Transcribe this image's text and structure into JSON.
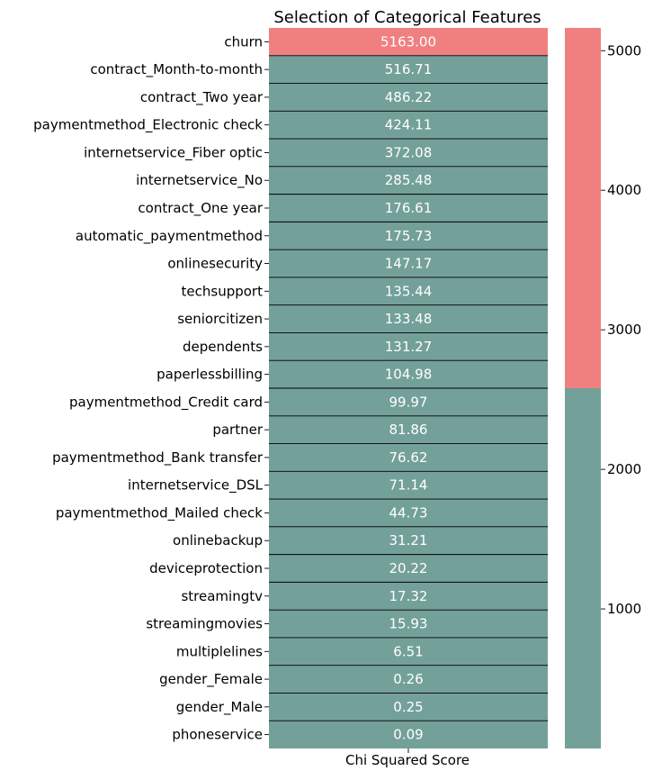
{
  "chart_data": {
    "type": "heatmap",
    "title": "Selection of Categorical Features",
    "xlabel": "Chi Squared Score",
    "columns": [
      "Chi Squared Score"
    ],
    "rows": [
      {
        "label": "churn",
        "value": 5163.0,
        "text": "5163.00"
      },
      {
        "label": "contract_Month-to-month",
        "value": 516.71,
        "text": "516.71"
      },
      {
        "label": "contract_Two year",
        "value": 486.22,
        "text": "486.22"
      },
      {
        "label": "paymentmethod_Electronic check",
        "value": 424.11,
        "text": "424.11"
      },
      {
        "label": "internetservice_Fiber optic",
        "value": 372.08,
        "text": "372.08"
      },
      {
        "label": "internetservice_No",
        "value": 285.48,
        "text": "285.48"
      },
      {
        "label": "contract_One year",
        "value": 176.61,
        "text": "176.61"
      },
      {
        "label": "automatic_paymentmethod",
        "value": 175.73,
        "text": "175.73"
      },
      {
        "label": "onlinesecurity",
        "value": 147.17,
        "text": "147.17"
      },
      {
        "label": "techsupport",
        "value": 135.44,
        "text": "135.44"
      },
      {
        "label": "seniorcitizen",
        "value": 133.48,
        "text": "133.48"
      },
      {
        "label": "dependents",
        "value": 131.27,
        "text": "131.27"
      },
      {
        "label": "paperlessbilling",
        "value": 104.98,
        "text": "104.98"
      },
      {
        "label": "paymentmethod_Credit card",
        "value": 99.97,
        "text": "99.97"
      },
      {
        "label": "partner",
        "value": 81.86,
        "text": "81.86"
      },
      {
        "label": "paymentmethod_Bank transfer",
        "value": 76.62,
        "text": "76.62"
      },
      {
        "label": "internetservice_DSL",
        "value": 71.14,
        "text": "71.14"
      },
      {
        "label": "paymentmethod_Mailed check",
        "value": 44.73,
        "text": "44.73"
      },
      {
        "label": "onlinebackup",
        "value": 31.21,
        "text": "31.21"
      },
      {
        "label": "deviceprotection",
        "value": 20.22,
        "text": "20.22"
      },
      {
        "label": "streamingtv",
        "value": 17.32,
        "text": "17.32"
      },
      {
        "label": "streamingmovies",
        "value": 15.93,
        "text": "15.93"
      },
      {
        "label": "multiplelines",
        "value": 6.51,
        "text": "6.51"
      },
      {
        "label": "gender_Female",
        "value": 0.26,
        "text": "0.26"
      },
      {
        "label": "gender_Male",
        "value": 0.25,
        "text": "0.25"
      },
      {
        "label": "phoneservice",
        "value": 0.09,
        "text": "0.09"
      }
    ],
    "colorbar": {
      "vmin": 0.09,
      "vmax": 5163.0,
      "ticks": [
        1000,
        2000,
        3000,
        4000,
        5000
      ],
      "tick_labels": [
        "1000",
        "2000",
        "3000",
        "4000",
        "5000"
      ],
      "colors": [
        "#74A09A",
        "#F08080"
      ],
      "threshold": 2581.5
    },
    "grid": true
  }
}
